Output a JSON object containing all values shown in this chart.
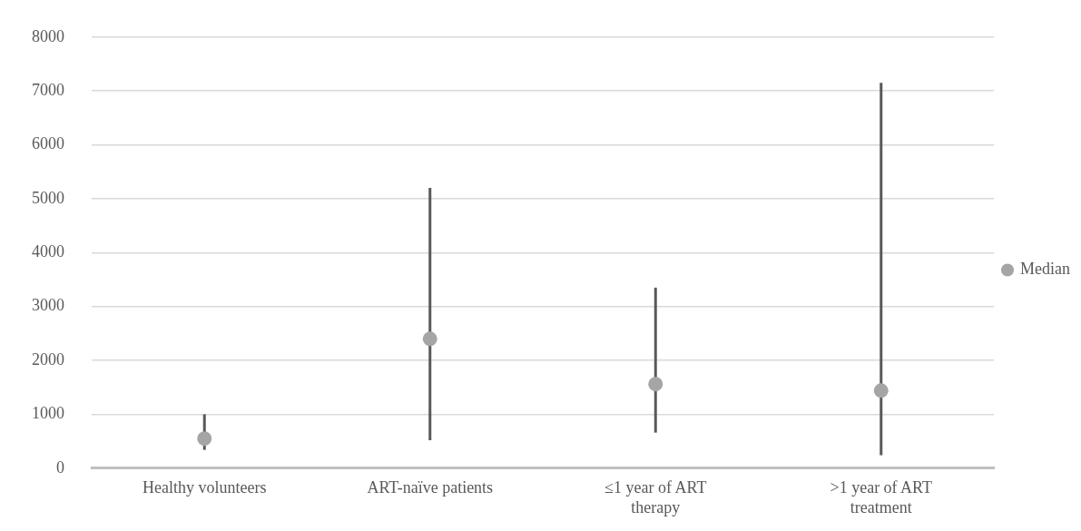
{
  "chart_data": {
    "type": "scatter",
    "categories": [
      "Healthy volunteers",
      "ART-naïve patients",
      "≤1 year of ART therapy",
      ">1 year of ART treatment"
    ],
    "series": [
      {
        "name": "Median",
        "color": "#a5a5a5",
        "values": [
          550,
          2400,
          1560,
          1440
        ],
        "errors": [
          [
            340,
            1000
          ],
          [
            520,
            5200
          ],
          [
            660,
            3350
          ],
          [
            240,
            7150
          ]
        ]
      }
    ],
    "ylim": [
      0,
      8000
    ],
    "yticks": [
      0,
      1000,
      2000,
      3000,
      4000,
      5000,
      6000,
      7000,
      8000
    ],
    "grid": "y",
    "legend": "right",
    "marker": "circle"
  }
}
